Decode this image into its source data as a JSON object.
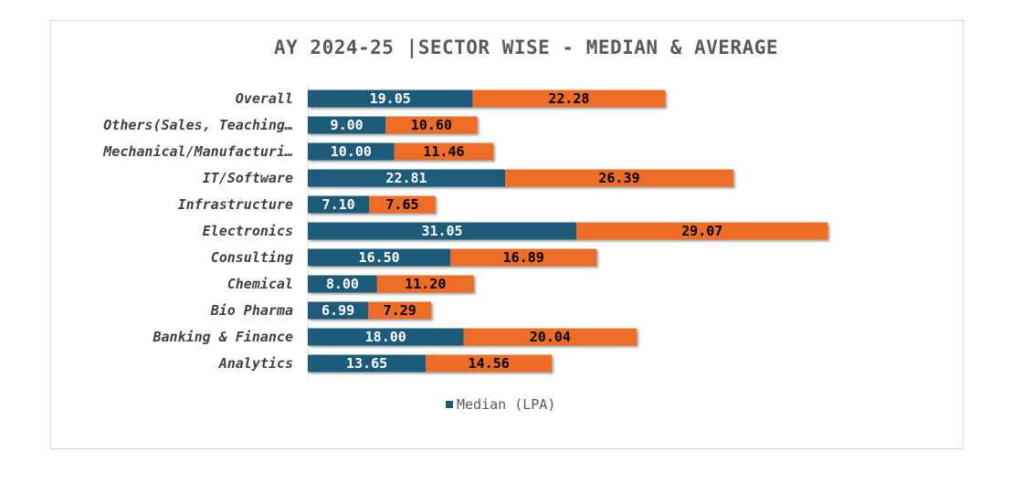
{
  "chart_data": {
    "type": "bar",
    "orientation": "horizontal",
    "stacked": true,
    "title": "AY 2024-25 |SECTOR WISE - MEDIAN & AVERAGE",
    "categories": [
      "Overall",
      "Others(Sales, Teaching…",
      "Mechanical/Manufacturi…",
      "IT/Software",
      "Infrastructure",
      "Electronics",
      "Consulting",
      "Chemical",
      "Bio Pharma",
      "Banking & Finance",
      "Analytics"
    ],
    "series": [
      {
        "name": "Median (LPA)",
        "color": "#1f5c7a",
        "values": [
          19.05,
          9.0,
          10.0,
          22.81,
          7.1,
          31.05,
          16.5,
          8.0,
          6.99,
          18.0,
          13.65
        ],
        "labels": [
          "19.05",
          "9.00",
          "10.00",
          "22.81",
          "7.10",
          "31.05",
          "16.50",
          "8.00",
          "6.99",
          "18.00",
          "13.65"
        ]
      },
      {
        "color": "#ed6d26",
        "values": [
          22.28,
          10.6,
          11.46,
          26.39,
          7.65,
          29.07,
          16.89,
          11.2,
          7.29,
          20.04,
          14.56
        ],
        "labels": [
          "22.28",
          "10.60",
          "11.46",
          "26.39",
          "7.65",
          "29.07",
          "16.89",
          "11.20",
          "7.29",
          "20.04",
          "14.56"
        ]
      }
    ],
    "xlim": [
      0,
      62
    ],
    "grid": false,
    "legend_position": "bottom"
  },
  "legend": {
    "median_label": "Median (LPA)"
  }
}
